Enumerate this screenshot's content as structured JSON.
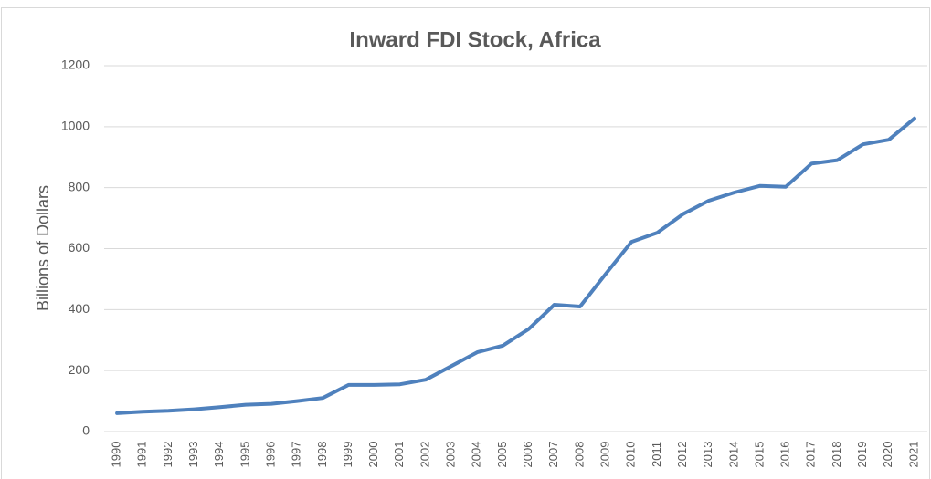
{
  "chart_data": {
    "type": "line",
    "title": "Inward FDI Stock, Africa",
    "y_label": "Billions of Dollars",
    "categories": [
      "1990",
      "1991",
      "1992",
      "1993",
      "1994",
      "1995",
      "1996",
      "1997",
      "1998",
      "1999",
      "2000",
      "2001",
      "2002",
      "2003",
      "2004",
      "2005",
      "2006",
      "2007",
      "2008",
      "2009",
      "2010",
      "2011",
      "2012",
      "2013",
      "2014",
      "2015",
      "2016",
      "2017",
      "2018",
      "2019",
      "2020",
      "2021"
    ],
    "series": [
      {
        "name": "Inward FDI Stock",
        "color": "#4f81bd",
        "values": [
          60,
          65,
          68,
          73,
          80,
          88,
          91,
          100,
          110,
          153,
          153,
          155,
          170,
          215,
          260,
          282,
          336,
          416,
          410,
          517,
          622,
          652,
          713,
          757,
          784,
          806,
          803,
          879,
          890,
          942,
          957,
          1027
        ]
      }
    ],
    "ylim": [
      0,
      1200
    ],
    "yticks": [
      0,
      200,
      400,
      600,
      800,
      1000,
      1200
    ],
    "grid": true
  }
}
